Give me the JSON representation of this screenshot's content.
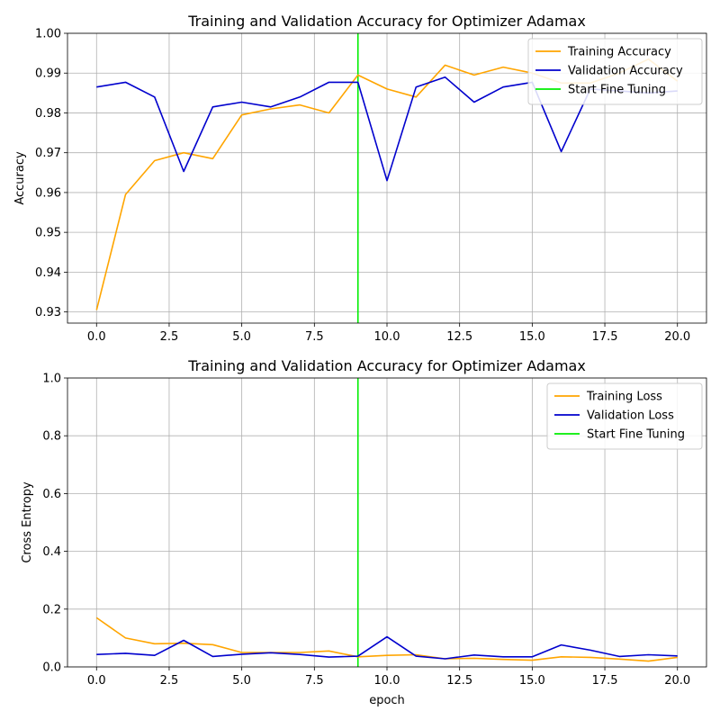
{
  "chart_data": [
    {
      "type": "line",
      "title": "Training and Validation Accuracy for Optimizer Adamax",
      "xlabel": "",
      "ylabel": "Accuracy",
      "xlim": [
        -1,
        21
      ],
      "ylim": [
        0.9272,
        1.0
      ],
      "x_ticks": [
        0.0,
        2.5,
        5.0,
        7.5,
        10.0,
        12.5,
        15.0,
        17.5,
        20.0
      ],
      "x_tick_labels": [
        "0.0",
        "2.5",
        "5.0",
        "7.5",
        "10.0",
        "12.5",
        "15.0",
        "17.5",
        "20.0"
      ],
      "y_ticks": [
        0.93,
        0.94,
        0.95,
        0.96,
        0.97,
        0.98,
        0.99,
        1.0
      ],
      "y_tick_labels": [
        "0.93",
        "0.94",
        "0.95",
        "0.96",
        "0.97",
        "0.98",
        "0.99",
        "1.00"
      ],
      "grid": true,
      "legend_position": "top-right",
      "x": [
        0,
        1,
        2,
        3,
        4,
        5,
        6,
        7,
        8,
        9,
        10,
        11,
        12,
        13,
        14,
        15,
        16,
        17,
        18,
        19,
        20
      ],
      "series": [
        {
          "name": "Training Accuracy",
          "color": "#ffa500",
          "values": [
            0.9305,
            0.9595,
            0.968,
            0.97,
            0.9685,
            0.9795,
            0.981,
            0.982,
            0.98,
            0.9895,
            0.986,
            0.984,
            0.992,
            0.9895,
            0.9915,
            0.99,
            0.9875,
            0.9875,
            0.99,
            0.9935,
            0.988
          ]
        },
        {
          "name": "Validation Accuracy",
          "color": "#0000cd",
          "values": [
            0.9865,
            0.9877,
            0.984,
            0.9653,
            0.9815,
            0.9827,
            0.9815,
            0.984,
            0.9877,
            0.9877,
            0.963,
            0.9865,
            0.989,
            0.9827,
            0.9865,
            0.9877,
            0.9703,
            0.986,
            0.9855,
            0.985,
            0.9855
          ]
        }
      ],
      "vline": {
        "name": "Start Fine Tuning",
        "x": 9,
        "color": "#00ee00"
      }
    },
    {
      "type": "line",
      "title": "Training and Validation Accuracy for Optimizer Adamax",
      "xlabel": "epoch",
      "ylabel": "Cross Entropy",
      "xlim": [
        -1,
        21
      ],
      "ylim": [
        0.0,
        1.0
      ],
      "x_ticks": [
        0.0,
        2.5,
        5.0,
        7.5,
        10.0,
        12.5,
        15.0,
        17.5,
        20.0
      ],
      "x_tick_labels": [
        "0.0",
        "2.5",
        "5.0",
        "7.5",
        "10.0",
        "12.5",
        "15.0",
        "17.5",
        "20.0"
      ],
      "y_ticks": [
        0.0,
        0.2,
        0.4,
        0.6,
        0.8,
        1.0
      ],
      "y_tick_labels": [
        "0.0",
        "0.2",
        "0.4",
        "0.6",
        "0.8",
        "1.0"
      ],
      "grid": true,
      "legend_position": "top-right",
      "x": [
        0,
        1,
        2,
        3,
        4,
        5,
        6,
        7,
        8,
        9,
        10,
        11,
        12,
        13,
        14,
        15,
        16,
        17,
        18,
        19,
        20
      ],
      "series": [
        {
          "name": "Training Loss",
          "color": "#ffa500",
          "values": [
            0.17,
            0.1,
            0.08,
            0.082,
            0.077,
            0.05,
            0.05,
            0.05,
            0.055,
            0.035,
            0.04,
            0.042,
            0.028,
            0.03,
            0.026,
            0.023,
            0.035,
            0.033,
            0.027,
            0.02,
            0.033
          ]
        },
        {
          "name": "Validation Loss",
          "color": "#0000cd",
          "values": [
            0.043,
            0.047,
            0.04,
            0.092,
            0.036,
            0.044,
            0.049,
            0.043,
            0.034,
            0.037,
            0.104,
            0.037,
            0.028,
            0.041,
            0.035,
            0.035,
            0.076,
            0.058,
            0.036,
            0.042,
            0.038
          ]
        }
      ],
      "vline": {
        "name": "Start Fine Tuning",
        "x": 9,
        "color": "#00ee00"
      }
    }
  ]
}
